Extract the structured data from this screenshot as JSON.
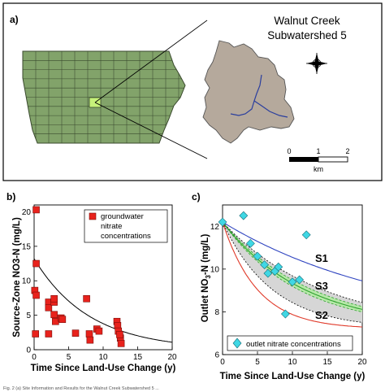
{
  "panel_a": {
    "letter": "a)",
    "title_line1": "Walnut Creek",
    "title_line2": "Subwatershed 5",
    "scale_ticks": [
      "0",
      "1",
      "2"
    ],
    "scale_unit": "km",
    "colors": {
      "iowa_fill": "#82a36a",
      "highlight": "#c7f27a",
      "watershed_fill": "#b5a99c",
      "stream": "#2b3f9e"
    }
  },
  "caption": "Fig. 2  (a) Site Information and Results for the Walnut Creek Subwatershed 5 ...",
  "chart_data": [
    {
      "panel": "b)",
      "type": "scatter",
      "xlabel": "Time Since Land-Use Change (y)",
      "ylabel": "Source-Zone NO3-N (mg/L)",
      "xlim": [
        0,
        20
      ],
      "ylim": [
        0,
        21
      ],
      "xticks": [
        0,
        5,
        10,
        15,
        20
      ],
      "yticks": [
        0,
        5,
        10,
        15,
        20
      ],
      "legend": {
        "placement": "top-right",
        "lines": [
          "groundwater",
          "nitrate",
          "concentrations"
        ]
      },
      "series": [
        {
          "marker": "square",
          "color": "#e8221c",
          "points": [
            [
              0.3,
              20.3
            ],
            [
              0.3,
              12.5
            ],
            [
              0.1,
              8.6
            ],
            [
              0.3,
              7.9
            ],
            [
              0.2,
              2.3
            ],
            [
              2.1,
              6.9
            ],
            [
              2.1,
              6.1
            ],
            [
              2.9,
              6.9
            ],
            [
              2.9,
              7.4
            ],
            [
              2.9,
              5.1
            ],
            [
              3.1,
              4.1
            ],
            [
              2.1,
              2.3
            ],
            [
              3.9,
              4.6
            ],
            [
              4.1,
              4.4
            ],
            [
              6.0,
              2.4
            ],
            [
              7.6,
              7.4
            ],
            [
              8.0,
              2.3
            ],
            [
              8.1,
              1.4
            ],
            [
              9.1,
              3.0
            ],
            [
              9.4,
              2.7
            ],
            [
              12.0,
              4.1
            ],
            [
              12.1,
              3.5
            ],
            [
              12.2,
              2.7
            ],
            [
              12.5,
              1.7
            ],
            [
              12.6,
              0.9
            ],
            [
              12.4,
              2.2
            ]
          ]
        }
      ],
      "curve": {
        "type": "exponential-fit",
        "a": 13.2,
        "k": 0.125,
        "color": "#000000"
      }
    },
    {
      "panel": "c)",
      "type": "line",
      "xlabel": "Time Since Land-Use Change (y)",
      "ylabel": "Outlet NO3-N (mg/L)",
      "ylabel_parts": [
        "Outlet NO",
        "3",
        "-N (mg/L)"
      ],
      "xlim": [
        0,
        20
      ],
      "ylim": [
        6,
        13
      ],
      "xticks": [
        0,
        5,
        10,
        15,
        20
      ],
      "yticks": [
        6,
        8,
        10,
        12
      ],
      "legend": {
        "placement": "bottom",
        "label": "outlet nitrate concentrations"
      },
      "series": [
        {
          "name": "S1",
          "color": "#2f44c0",
          "label_color": "#3a6fd6",
          "start": 12.2,
          "end": 7.2,
          "rate": 0.04,
          "band": 0
        },
        {
          "name": "S3",
          "color": "#2ea12e",
          "label_color": "#3cb03c",
          "start": 12.2,
          "end": 7.2,
          "rate": 0.085,
          "band": 0.35
        },
        {
          "name": "S2",
          "color": "#e03a2a",
          "label_color": "#d42a2a",
          "start": 12.2,
          "end": 7.2,
          "rate": 0.2,
          "band": 0
        }
      ],
      "envelope": {
        "upper_rate": 0.07,
        "lower_rate": 0.14,
        "end": 7.2,
        "fill": "#d6d6d6"
      },
      "observations": {
        "marker": "diamond",
        "color": "#3fd7e4",
        "points": [
          [
            0,
            12.2
          ],
          [
            3,
            12.5
          ],
          [
            4,
            11.2
          ],
          [
            5,
            10.6
          ],
          [
            6,
            10.2
          ],
          [
            6.5,
            9.8
          ],
          [
            7.5,
            9.9
          ],
          [
            8,
            10.1
          ],
          [
            9,
            7.9
          ],
          [
            10,
            9.4
          ],
          [
            11,
            9.5
          ],
          [
            12,
            11.6
          ]
        ]
      }
    }
  ]
}
